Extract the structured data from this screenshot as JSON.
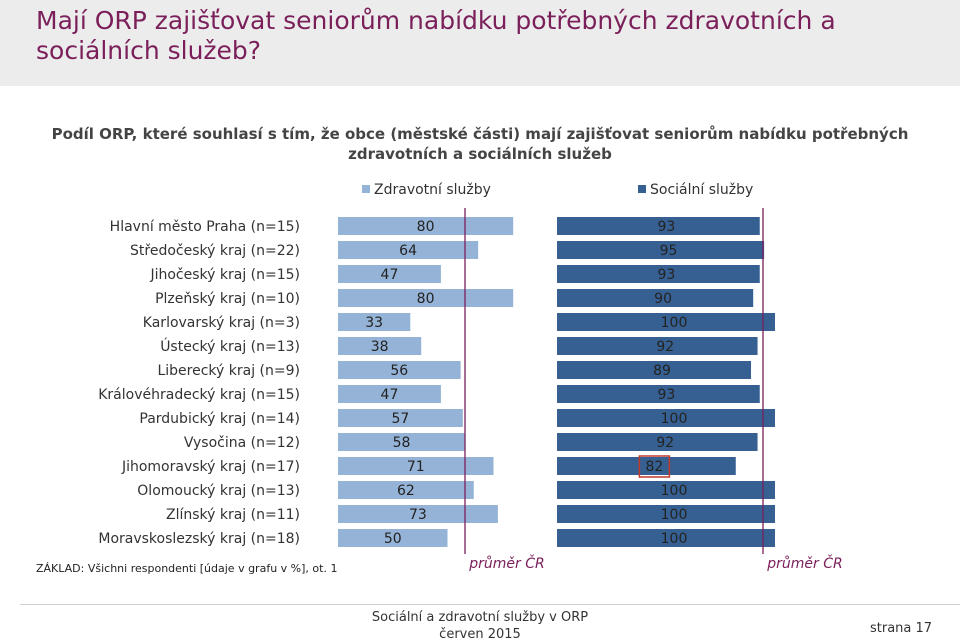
{
  "slide": {
    "title": "Mají ORP zajišťovat seniorům nabídku potřebných zdravotních a sociálních služeb?",
    "footnote": "ZÁKLAD: Všichni respondenti [údaje v grafu v %], ot. 1",
    "footer_line1": "Sociální a zdravotní služby v ORP",
    "footer_line2": "červen 2015",
    "page_label": "strana 17"
  },
  "chart_data": {
    "type": "bar",
    "title": "Podíl ORP, které souhlasí s tím, že obce (městské části) mají zajišťovat seniorům nabídku potřebných zdravotních a sociálních služeb",
    "categories": [
      "Hlavní město Praha (n=15)",
      "Středočeský kraj (n=22)",
      "Jihočeský kraj (n=15)",
      "Plzeňský kraj (n=10)",
      "Karlovarský kraj (n=3)",
      "Ústecký kraj (n=13)",
      "Liberecký kraj (n=9)",
      "Královéhradecký kraj (n=15)",
      "Pardubický kraj (n=14)",
      "Vysočina (n=12)",
      "Jihomoravský kraj (n=17)",
      "Olomoucký kraj (n=13)",
      "Zlínský kraj (n=11)",
      "Moravskoslezský kraj (n=18)"
    ],
    "series": [
      {
        "name": "Zdravotní služby",
        "color": "#95b3d7",
        "values": [
          80,
          64,
          47,
          80,
          33,
          38,
          56,
          47,
          57,
          58,
          71,
          62,
          73,
          50
        ],
        "average_label": "průměr ČR"
      },
      {
        "name": "Sociální služby",
        "color": "#376092",
        "values": [
          93,
          95,
          93,
          90,
          100,
          92,
          89,
          93,
          100,
          92,
          82,
          100,
          100,
          100
        ],
        "average_label": "průměr ČR",
        "highlighted_category": "Jihomoravský kraj (n=17)"
      }
    ],
    "xlim": [
      0,
      100
    ],
    "legend_position": "top",
    "average_line_color": "#7a1f5a"
  }
}
